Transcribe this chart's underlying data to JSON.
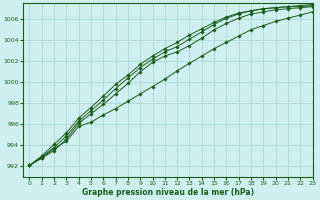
{
  "xlabel": "Graphe pression niveau de la mer (hPa)",
  "background_color": "#d0f0f0",
  "grid_color": "#aad8d8",
  "line_color": "#1a5c1a",
  "xlim": [
    -0.5,
    23
  ],
  "ylim": [
    991.0,
    1007.5
  ],
  "yticks": [
    992,
    994,
    996,
    998,
    1000,
    1002,
    1004,
    1006
  ],
  "xticks": [
    0,
    1,
    2,
    3,
    4,
    5,
    6,
    7,
    8,
    9,
    10,
    11,
    12,
    13,
    14,
    15,
    16,
    17,
    18,
    19,
    20,
    21,
    22,
    23
  ],
  "series": [
    [
      992.1,
      992.8,
      993.7,
      994.4,
      995.8,
      996.2,
      996.9,
      997.5,
      998.2,
      998.9,
      999.6,
      1000.3,
      1001.1,
      1001.8,
      1002.5,
      1003.2,
      1003.8,
      1004.4,
      1005.0,
      1005.4,
      1005.8,
      1006.1,
      1006.4,
      1006.7
    ],
    [
      992.1,
      992.8,
      993.5,
      994.6,
      996.1,
      997.0,
      997.9,
      998.9,
      999.9,
      1001.0,
      1001.9,
      1002.5,
      1002.9,
      1003.5,
      1004.2,
      1005.0,
      1005.6,
      1006.1,
      1006.5,
      1006.7,
      1006.9,
      1007.0,
      1007.1,
      1007.2
    ],
    [
      992.1,
      992.9,
      993.8,
      994.9,
      996.3,
      997.3,
      998.3,
      999.4,
      1000.4,
      1001.4,
      1002.2,
      1002.9,
      1003.4,
      1004.1,
      1004.8,
      1005.5,
      1006.1,
      1006.5,
      1006.8,
      1007.0,
      1007.1,
      1007.2,
      1007.2,
      1007.3
    ],
    [
      992.1,
      993.0,
      994.1,
      995.2,
      996.6,
      997.6,
      998.7,
      999.8,
      1000.7,
      1001.7,
      1002.5,
      1003.2,
      1003.8,
      1004.5,
      1005.1,
      1005.7,
      1006.2,
      1006.6,
      1006.8,
      1007.0,
      1007.1,
      1007.2,
      1007.3,
      1007.4
    ]
  ]
}
